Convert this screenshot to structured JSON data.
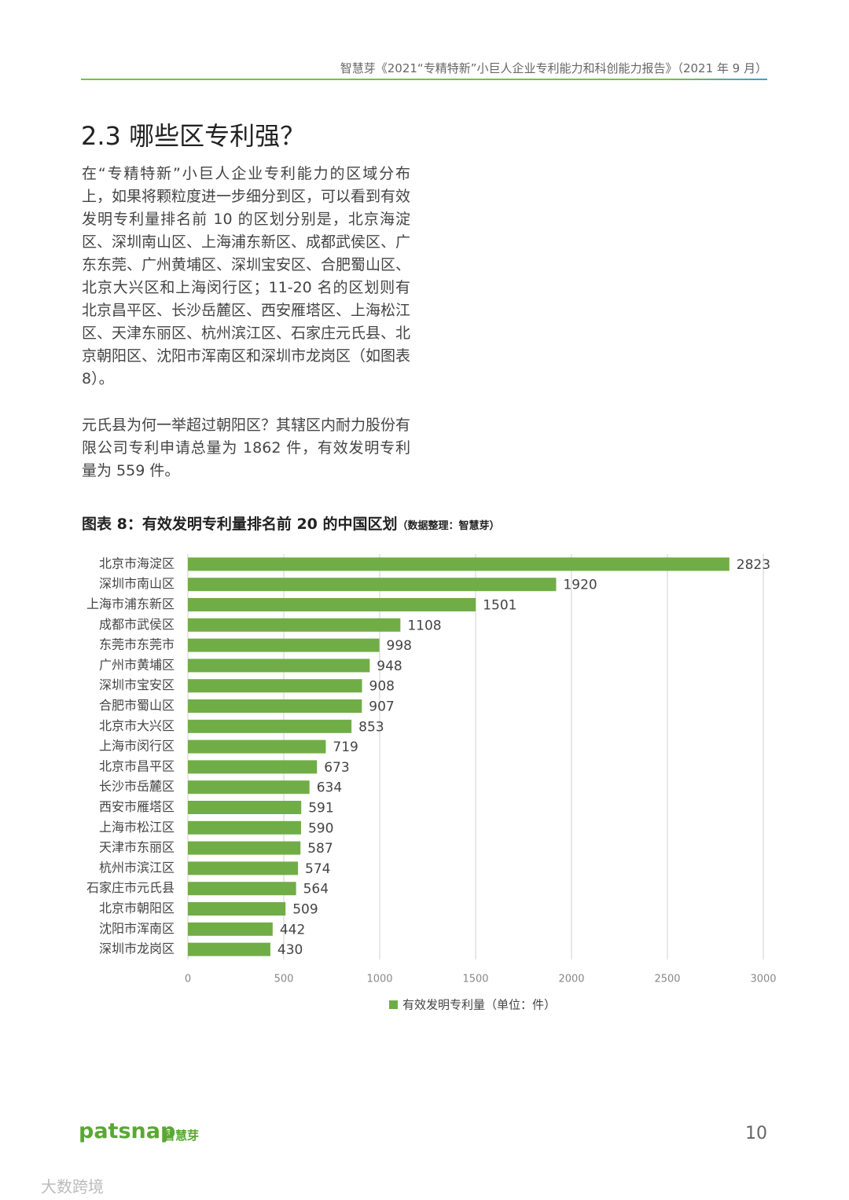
{
  "header": {
    "text": "智慧芽《2021“专精特新”小巨人企业专利能力和科创能力报告》（2021 年 9 月）"
  },
  "section_title": "2.3 哪些区专利强？",
  "paragraphs": [
    "在“专精特新”小巨人企业专利能力的区域分布上，如果将颗粒度进一步细分到区，可以看到有效发明专利量排名前 10 的区划分别是，北京海淀区、深圳南山区、上海浦东新区、成都武侯区、广东东莞、广州黄埔区、深圳宝安区、合肥蜀山区、北京大兴区和上海闵行区；11-20 名的区划则有北京昌平区、长沙岳麓区、西安雁塔区、上海松江区、天津东丽区、杭州滨江区、石家庄元氏县、北京朝阳区、沈阳市浑南区和深圳市龙岗区（如图表 8）。",
    "元氏县为何一举超过朝阳区？其辖区内耐力股份有限公司专利申请总量为 1862 件，有效发明专利量为 559 件。"
  ],
  "chart_data": {
    "type": "bar",
    "orientation": "horizontal",
    "title": "图表 8：有效发明专利量排名前 20 的中国区划",
    "subtitle": "（数据整理：智慧芽）",
    "categories": [
      "北京市海淀区",
      "深圳市南山区",
      "上海市浦东新区",
      "成都市武侯区",
      "东莞市东莞市",
      "广州市黄埔区",
      "深圳市宝安区",
      "合肥市蜀山区",
      "北京市大兴区",
      "上海市闵行区",
      "北京市昌平区",
      "长沙市岳麓区",
      "西安市雁塔区",
      "上海市松江区",
      "天津市东丽区",
      "杭州市滨江区",
      "石家庄市元氏县",
      "北京市朝阳区",
      "沈阳市浑南区",
      "深圳市龙岗区"
    ],
    "series": [
      {
        "name": "有效发明专利量（单位：件）",
        "color": "#70ad47",
        "values": [
          2823,
          1920,
          1501,
          1108,
          998,
          948,
          908,
          907,
          853,
          719,
          673,
          634,
          591,
          590,
          587,
          574,
          564,
          509,
          442,
          430
        ]
      }
    ],
    "xlim": [
      0,
      3000
    ],
    "xticks": [
      0,
      500,
      1000,
      1500,
      2000,
      2500,
      3000
    ],
    "grid": true,
    "legend": "bottom"
  },
  "footer": {
    "brand": "patsnap",
    "brand_cn": "智慧芽",
    "page": "10"
  },
  "watermark": "大数跨境"
}
